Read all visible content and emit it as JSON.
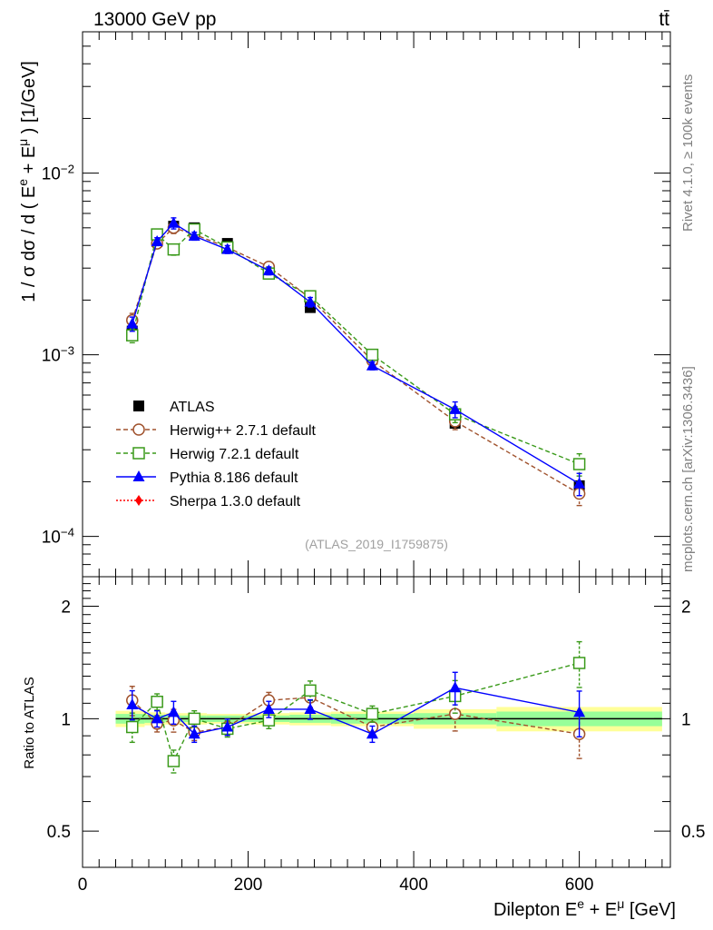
{
  "header": {
    "left": "13000 GeV pp",
    "right": "tt̄"
  },
  "side_labels": {
    "rivet": "Rivet 4.1.0, ≥ 100k events",
    "mcplots": "mcplots.cern.ch [arXiv:1306.3436]"
  },
  "watermark": "(ATLAS_2019_I1759875)",
  "colors": {
    "atlas": "#000000",
    "herwigpp": "#a0522d",
    "herwig7": "#3a9a1a",
    "pythia": "#0000ff",
    "sherpa": "#ff0000",
    "band_yellow": "#ffff99",
    "band_green": "#99ff99"
  },
  "chart_data": [
    {
      "type": "scatter",
      "panel": "main",
      "ylabel": "1 / σ dσ / d ( E^e + E^μ ) [1/GeV]",
      "yscale": "log",
      "ylim": [
        6e-05,
        0.06
      ],
      "xlim": [
        0,
        710
      ],
      "y_tick_labels": [
        "10^-2",
        "10^-3",
        "10^-4"
      ],
      "legend": [
        "ATLAS",
        "Herwig++ 2.7.1 default",
        "Herwig 7.2.1 default",
        "Pythia 8.186 default",
        "Sherpa 1.3.0 default"
      ],
      "x": [
        60,
        90,
        110,
        135,
        175,
        225,
        275,
        350,
        450,
        600
      ],
      "series": [
        {
          "name": "ATLAS",
          "values": [
            0.00135,
            0.0042,
            0.0051,
            0.005,
            0.0041,
            0.0028,
            0.00182,
            0.00098,
            0.00042,
            0.00019
          ]
        },
        {
          "name": "Herwig++ 2.7.1 default",
          "values": [
            0.00155,
            0.0041,
            0.005,
            0.0046,
            0.0039,
            0.00305,
            0.00205,
            0.00093,
            0.00043,
            0.000172
          ]
        },
        {
          "name": "Herwig 7.2.1 default",
          "values": [
            0.00128,
            0.0046,
            0.0038,
            0.0049,
            0.0039,
            0.0028,
            0.0021,
            0.001,
            0.00047,
            0.00025
          ]
        },
        {
          "name": "Pythia 8.186 default",
          "values": [
            0.00148,
            0.0042,
            0.0053,
            0.0045,
            0.0038,
            0.0029,
            0.00195,
            0.00087,
            0.0005,
            0.000195
          ]
        }
      ]
    },
    {
      "type": "scatter",
      "panel": "ratio",
      "ylabel": "Ratio to ATLAS",
      "ylim": [
        0.4,
        2.4
      ],
      "y_tick_labels": [
        "0.5",
        "1",
        "2"
      ],
      "xlabel": "Dilepton E^e + E^μ [GeV]",
      "x_tick_labels": [
        "0",
        "200",
        "400",
        "600"
      ],
      "x": [
        60,
        90,
        110,
        135,
        175,
        225,
        275,
        350,
        450,
        600
      ],
      "series": [
        {
          "name": "Herwig++ 2.7.1 default",
          "values": [
            1.12,
            0.97,
            0.99,
            0.92,
            0.95,
            1.12,
            1.14,
            0.95,
            1.03,
            0.91
          ]
        },
        {
          "name": "Herwig 7.2.1 default",
          "values": [
            0.95,
            1.11,
            0.77,
            1.0,
            0.94,
            0.99,
            1.19,
            1.03,
            1.15,
            1.41
          ]
        },
        {
          "name": "Pythia 8.186 default",
          "values": [
            1.09,
            1.0,
            1.04,
            0.91,
            0.95,
            1.06,
            1.06,
            0.91,
            1.21,
            1.04
          ]
        }
      ]
    }
  ]
}
